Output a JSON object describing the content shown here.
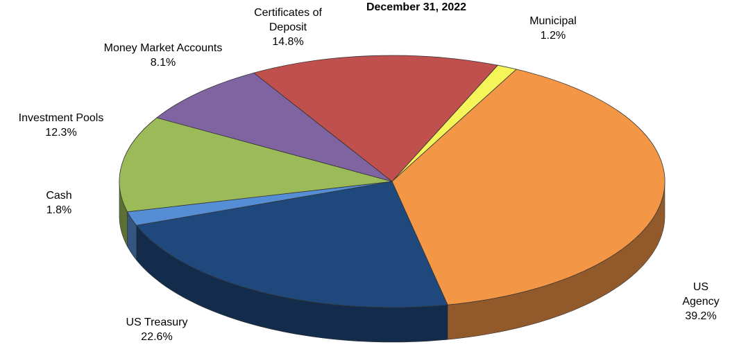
{
  "chart_data": {
    "type": "pie",
    "title": "December 31, 2022",
    "categories": [
      "Municipal",
      "US Agency",
      "US Treasury",
      "Cash",
      "Investment Pools",
      "Money Market Accounts",
      "Certificates of Deposit"
    ],
    "values": [
      1.2,
      39.2,
      22.6,
      1.8,
      12.3,
      8.1,
      14.8
    ],
    "value_labels": [
      "1.2%",
      "39.2%",
      "22.6%",
      "1.8%",
      "12.3%",
      "8.1%",
      "14.8%"
    ],
    "colors": [
      "#f5f55a",
      "#f39646",
      "#1f497d",
      "#558ed5",
      "#9bbb59",
      "#8064a2",
      "#c0504d"
    ]
  }
}
